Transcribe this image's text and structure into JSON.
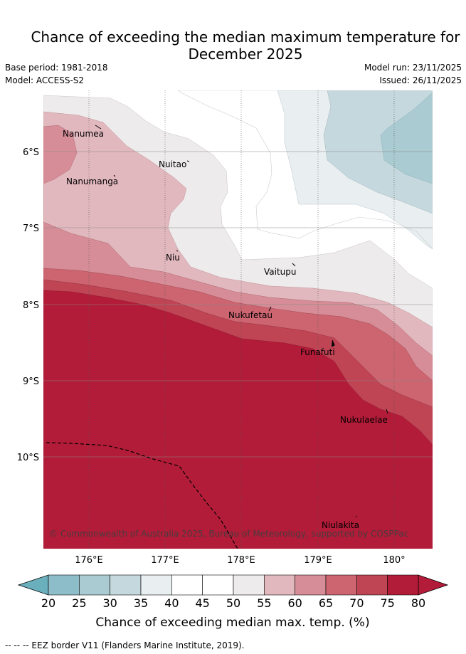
{
  "header": {
    "title_line1": "Chance of exceeding the median maximum temperature for",
    "title_line2": "December 2025",
    "base_period": "Base period: 1981-2018",
    "model": "Model: ACCESS-S2",
    "model_run": "Model run: 23/11/2025",
    "issued": "Issued: 26/11/2025"
  },
  "map": {
    "places": [
      {
        "name": "Nanumea"
      },
      {
        "name": "Nuitao"
      },
      {
        "name": "Nanumanga"
      },
      {
        "name": "Niu"
      },
      {
        "name": "Vaitupu"
      },
      {
        "name": "Nukufetau"
      },
      {
        "name": "Funafuti"
      },
      {
        "name": "Nukulaelae"
      },
      {
        "name": "Niulakita"
      }
    ],
    "lon_ticks": [
      "176°E",
      "177°E",
      "178°E",
      "179°E",
      "180°"
    ],
    "lat_ticks": [
      "6°S",
      "7°S",
      "8°S",
      "9°S",
      "10°S"
    ],
    "copyright": "© Commonwealth of Australia 2025, Bureau of Meteorology, supported by COSPPac"
  },
  "colorbar": {
    "ticks": [
      "20",
      "25",
      "30",
      "35",
      "40",
      "45",
      "50",
      "55",
      "60",
      "65",
      "70",
      "75",
      "80"
    ],
    "colors": [
      "#6aafbc",
      "#8dbdc8",
      "#a9cbd1",
      "#c5d8dd",
      "#e9eef1",
      "#ffffff",
      "#ffffff",
      "#edebeb",
      "#e2b8bf",
      "#d68d97",
      "#cc6570",
      "#bf4454",
      "#b21c38"
    ],
    "label": "Chance of exceeding median max. temp. (%)"
  },
  "footer": {
    "legend": "--  --  -- EEZ border V11 (Flanders Marine Institute, 2019)."
  }
}
